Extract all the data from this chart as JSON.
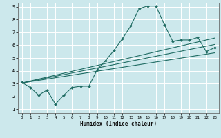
{
  "xlabel": "Humidex (Indice chaleur)",
  "bg_color": "#cce8ec",
  "grid_color": "#ffffff",
  "line_color": "#1e6b62",
  "xlim": [
    -0.5,
    23.5
  ],
  "ylim": [
    0.7,
    9.3
  ],
  "yticks": [
    1,
    2,
    3,
    4,
    5,
    6,
    7,
    8,
    9
  ],
  "xticks": [
    0,
    1,
    2,
    3,
    4,
    5,
    6,
    7,
    8,
    9,
    10,
    11,
    12,
    13,
    14,
    15,
    16,
    17,
    18,
    19,
    20,
    21,
    22,
    23
  ],
  "series1_x": [
    0,
    1,
    2,
    3,
    4,
    5,
    6,
    7,
    8,
    9,
    10,
    11,
    12,
    13,
    14,
    15,
    16,
    17,
    18,
    19,
    20,
    21,
    22,
    23
  ],
  "series1_y": [
    3.1,
    2.7,
    2.1,
    2.5,
    1.4,
    2.1,
    2.7,
    2.8,
    2.8,
    4.1,
    4.8,
    5.6,
    6.5,
    7.5,
    8.85,
    9.05,
    9.05,
    7.6,
    6.3,
    6.4,
    6.4,
    6.6,
    5.5,
    5.8
  ],
  "line2_x": [
    0,
    23
  ],
  "line2_y": [
    3.05,
    6.55
  ],
  "line3_x": [
    0,
    23
  ],
  "line3_y": [
    3.05,
    6.05
  ],
  "line4_x": [
    0,
    23
  ],
  "line4_y": [
    3.05,
    5.4
  ]
}
